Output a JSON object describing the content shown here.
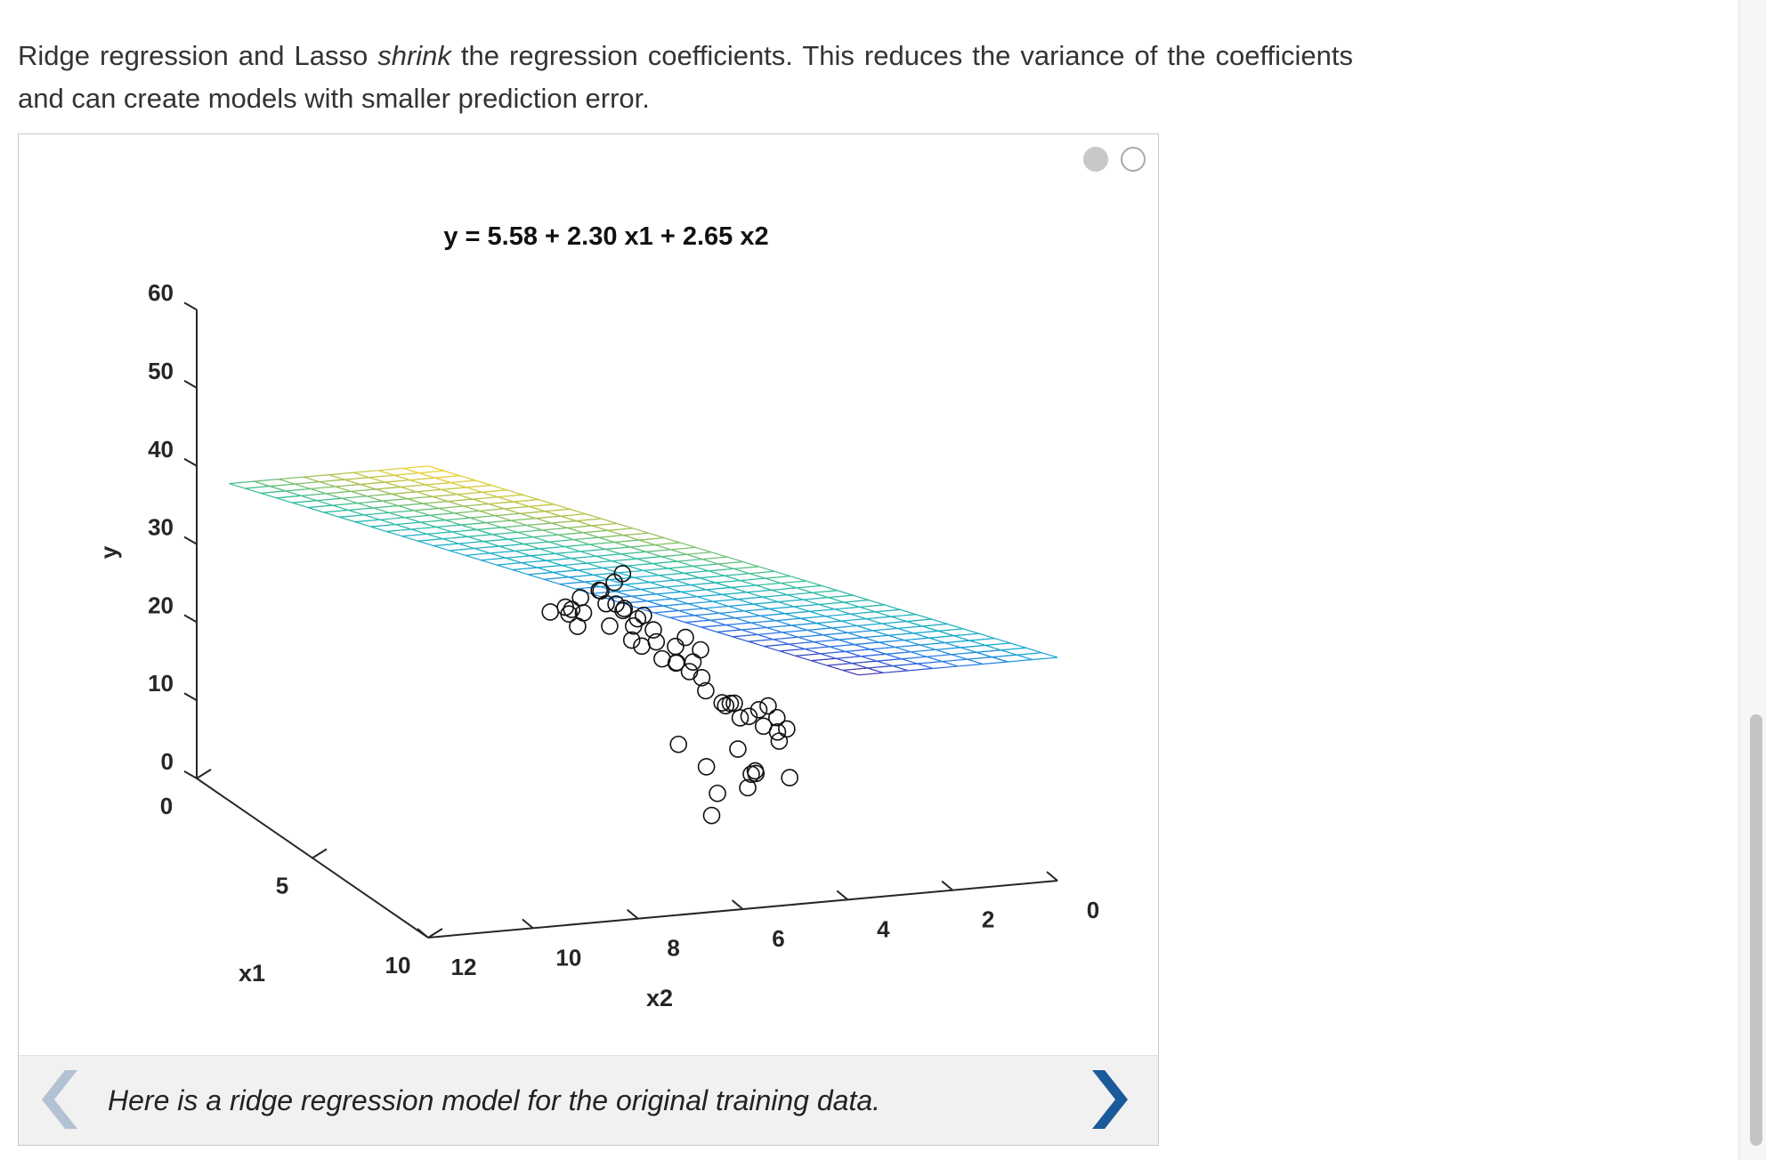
{
  "intro": {
    "part1": "Ridge regression and Lasso ",
    "emph": "shrink",
    "part2": " the regression coefficients. This reduces the variance of the coefficients and can create models with smaller prediction error."
  },
  "slideshow": {
    "slide_count": 2,
    "active_slide": 1,
    "caption": "Here is a ridge regression model for the original training data.",
    "prev_icon": "chevron-left-icon",
    "next_icon": "chevron-right-icon",
    "colors": {
      "prev_arrow": "#b3c2d2",
      "next_arrow": "#1a5a9a",
      "dot_active": "#c8c8c8"
    }
  },
  "chart_data": {
    "type": "scatter",
    "title": "y = 5.58 + 2.30 x1 + 2.65 x2",
    "xlabel": "x1",
    "ylabel": "x2",
    "zlabel": "y",
    "x1_ticks": [
      "0",
      "5",
      "10"
    ],
    "x2_ticks": [
      "12",
      "10",
      "8",
      "6",
      "4",
      "2",
      "0"
    ],
    "y_ticks": [
      "0",
      "10",
      "20",
      "30",
      "40",
      "50",
      "60"
    ],
    "x1_lim": [
      0,
      10
    ],
    "x2_lim": [
      0,
      12
    ],
    "y_lim": [
      0,
      60
    ],
    "grid": false,
    "surface": {
      "type": "mesh",
      "intercept": 5.58,
      "coef_x1": 2.3,
      "coef_x2": 2.65,
      "colormap": "parula"
    },
    "points": [
      {
        "x1": 8.4,
        "x2": 8.0,
        "y": 38.7
      },
      {
        "x1": 8.1,
        "x2": 7.9,
        "y": 38.1
      },
      {
        "x1": 8.2,
        "x2": 8.3,
        "y": 37.6
      },
      {
        "x1": 8.5,
        "x2": 8.6,
        "y": 36.9
      },
      {
        "x1": 8.3,
        "x2": 7.7,
        "y": 39.4
      },
      {
        "x1": 8.0,
        "x2": 8.5,
        "y": 36.1
      },
      {
        "x1": 8.6,
        "x2": 7.8,
        "y": 37.3
      },
      {
        "x1": 8.2,
        "x2": 7.5,
        "y": 40.2
      },
      {
        "x1": 8.4,
        "x2": 7.9,
        "y": 37.0
      },
      {
        "x1": 8.1,
        "x2": 8.2,
        "y": 35.4
      },
      {
        "x1": 8.5,
        "x2": 7.6,
        "y": 36.4
      },
      {
        "x1": 8.3,
        "x2": 8.4,
        "y": 34.2
      },
      {
        "x1": 7.8,
        "x2": 8.7,
        "y": 35.2
      },
      {
        "x1": 8.4,
        "x2": 7.3,
        "y": 34.7
      },
      {
        "x1": 8.0,
        "x2": 7.4,
        "y": 35.0
      },
      {
        "x1": 8.2,
        "x2": 7.1,
        "y": 34.6
      },
      {
        "x1": 7.7,
        "x2": 8.3,
        "y": 34.5
      },
      {
        "x1": 8.6,
        "x2": 7.5,
        "y": 32.5
      },
      {
        "x1": 8.1,
        "x2": 7.7,
        "y": 33.4
      },
      {
        "x1": 8.4,
        "x2": 7.0,
        "y": 33.1
      },
      {
        "x1": 8.0,
        "x2": 7.2,
        "y": 32.9
      },
      {
        "x1": 8.3,
        "x2": 6.9,
        "y": 31.3
      },
      {
        "x1": 7.9,
        "x2": 7.0,
        "y": 30.0
      },
      {
        "x1": 8.5,
        "x2": 6.6,
        "y": 28.9
      },
      {
        "x1": 8.2,
        "x2": 6.3,
        "y": 31.3
      },
      {
        "x1": 8.0,
        "x2": 6.4,
        "y": 29.8
      },
      {
        "x1": 8.4,
        "x2": 6.1,
        "y": 30.0
      },
      {
        "x1": 8.1,
        "x2": 6.7,
        "y": 28.6
      },
      {
        "x1": 8.6,
        "x2": 6.4,
        "y": 27.8
      },
      {
        "x1": 8.3,
        "x2": 6.2,
        "y": 28.3
      },
      {
        "x1": 7.8,
        "x2": 6.3,
        "y": 27.2
      },
      {
        "x1": 8.4,
        "x2": 6.0,
        "y": 24.7
      },
      {
        "x1": 8.0,
        "x2": 5.9,
        "y": 25.5
      },
      {
        "x1": 8.2,
        "x2": 5.6,
        "y": 22.5
      },
      {
        "x1": 8.5,
        "x2": 5.5,
        "y": 23.0
      },
      {
        "x1": 8.1,
        "x2": 5.4,
        "y": 22.1
      },
      {
        "x1": 8.3,
        "x2": 5.3,
        "y": 20.6
      },
      {
        "x1": 7.9,
        "x2": 5.4,
        "y": 21.4
      },
      {
        "x1": 8.6,
        "x2": 4.9,
        "y": 22.5
      },
      {
        "x1": 8.2,
        "x2": 4.9,
        "y": 21.2
      },
      {
        "x1": 8.4,
        "x2": 4.9,
        "y": 19.5
      },
      {
        "x1": 8.0,
        "x2": 5.0,
        "y": 20.0
      },
      {
        "x1": 8.3,
        "x2": 4.6,
        "y": 20.2
      },
      {
        "x1": 8.5,
        "x2": 4.5,
        "y": 19.1
      },
      {
        "x1": 8.1,
        "x2": 4.5,
        "y": 17.9
      },
      {
        "x1": 8.4,
        "x2": 4.6,
        "y": 17.4
      },
      {
        "x1": 7.9,
        "x2": 6.3,
        "y": 17.0
      },
      {
        "x1": 8.2,
        "x2": 5.3,
        "y": 16.4
      },
      {
        "x1": 8.5,
        "x2": 5.1,
        "y": 14.1
      },
      {
        "x1": 8.3,
        "x2": 5.0,
        "y": 13.3
      },
      {
        "x1": 8.1,
        "x2": 5.0,
        "y": 12.8
      },
      {
        "x1": 8.4,
        "x2": 5.2,
        "y": 11.8
      },
      {
        "x1": 8.0,
        "x2": 5.6,
        "y": 10.5
      },
      {
        "x1": 8.2,
        "x2": 5.8,
        "y": 8.2
      },
      {
        "x1": 8.4,
        "x2": 4.4,
        "y": 12.6
      },
      {
        "x1": 8.2,
        "x2": 5.9,
        "y": 14.5
      }
    ]
  }
}
